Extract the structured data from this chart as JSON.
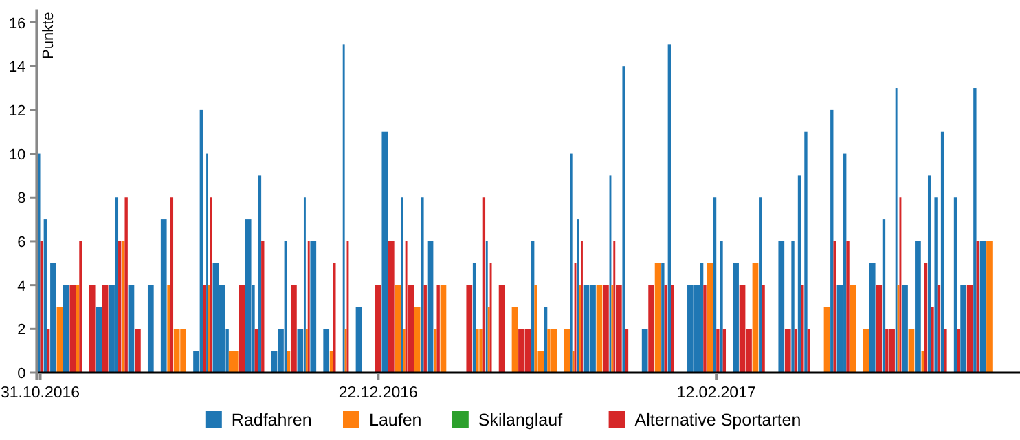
{
  "chart_data": {
    "type": "bar",
    "ylabel": "Punkte",
    "x": [
      "2016-10-31",
      "2016-11-01",
      "2016-11-02",
      "2016-11-03",
      "2016-11-04",
      "2016-11-05",
      "2016-11-06",
      "2016-11-08",
      "2016-11-09",
      "2016-11-10",
      "2016-11-11",
      "2016-11-12",
      "2016-11-13",
      "2016-11-14",
      "2016-11-15",
      "2016-11-17",
      "2016-11-19",
      "2016-11-20",
      "2016-11-21",
      "2016-11-22",
      "2016-11-24",
      "2016-11-25",
      "2016-11-26",
      "2016-11-27",
      "2016-11-28",
      "2016-11-29",
      "2016-11-30",
      "2016-12-01",
      "2016-12-02",
      "2016-12-03",
      "2016-12-04",
      "2016-12-06",
      "2016-12-07",
      "2016-12-08",
      "2016-12-09",
      "2016-12-10",
      "2016-12-11",
      "2016-12-12",
      "2016-12-14",
      "2016-12-15",
      "2016-12-17",
      "2016-12-19",
      "2016-12-22",
      "2016-12-23",
      "2016-12-24",
      "2016-12-25",
      "2016-12-26",
      "2016-12-27",
      "2016-12-28",
      "2016-12-29",
      "2016-12-30",
      "2016-12-31",
      "2017-01-01",
      "2017-01-05",
      "2017-01-06",
      "2017-01-07",
      "2017-01-08",
      "2017-01-10",
      "2017-01-12",
      "2017-01-13",
      "2017-01-14",
      "2017-01-15",
      "2017-01-16",
      "2017-01-17",
      "2017-01-18",
      "2017-01-20",
      "2017-01-21",
      "2017-01-22",
      "2017-01-23",
      "2017-01-24",
      "2017-01-25",
      "2017-01-26",
      "2017-01-27",
      "2017-01-28",
      "2017-01-29",
      "2017-02-01",
      "2017-02-02",
      "2017-02-03",
      "2017-02-04",
      "2017-02-05",
      "2017-02-08",
      "2017-02-09",
      "2017-02-10",
      "2017-02-11",
      "2017-02-12",
      "2017-02-13",
      "2017-02-15",
      "2017-02-16",
      "2017-02-17",
      "2017-02-18",
      "2017-02-19",
      "2017-02-22",
      "2017-02-23",
      "2017-02-24",
      "2017-02-25",
      "2017-02-26",
      "2017-03-01",
      "2017-03-02",
      "2017-03-03",
      "2017-03-04",
      "2017-03-05",
      "2017-03-07",
      "2017-03-08",
      "2017-03-09",
      "2017-03-10",
      "2017-03-11",
      "2017-03-12",
      "2017-03-13",
      "2017-03-14",
      "2017-03-15",
      "2017-03-16",
      "2017-03-17",
      "2017-03-18",
      "2017-03-19",
      "2017-03-21",
      "2017-03-22",
      "2017-03-23",
      "2017-03-24",
      "2017-03-25",
      "2017-03-26"
    ],
    "series": [
      {
        "name": "Radfahren",
        "color": "#1f77b4",
        "values": [
          10,
          7,
          5,
          null,
          4,
          null,
          null,
          null,
          3,
          null,
          4,
          8,
          null,
          4,
          null,
          4,
          7,
          null,
          null,
          null,
          1,
          12,
          10,
          5,
          4,
          2,
          null,
          null,
          7,
          4,
          9,
          1,
          2,
          6,
          null,
          2,
          8,
          6,
          2,
          null,
          15,
          3,
          null,
          11,
          null,
          null,
          8,
          null,
          null,
          8,
          6,
          null,
          null,
          null,
          5,
          null,
          6,
          null,
          null,
          null,
          null,
          6,
          null,
          3,
          null,
          null,
          10,
          7,
          4,
          4,
          null,
          null,
          9,
          null,
          14,
          2,
          null,
          null,
          5,
          15,
          4,
          4,
          5,
          null,
          8,
          6,
          5,
          null,
          null,
          null,
          8,
          6,
          null,
          6,
          9,
          11,
          null,
          12,
          4,
          10,
          null,
          null,
          5,
          null,
          7,
          null,
          13,
          4,
          null,
          6,
          null,
          9,
          8,
          11,
          8,
          4,
          null,
          13,
          6,
          null
        ]
      },
      {
        "name": "Laufen",
        "color": "#ff7f0e",
        "values": [
          null,
          null,
          null,
          3,
          null,
          null,
          4,
          null,
          null,
          null,
          null,
          null,
          6,
          null,
          null,
          null,
          null,
          4,
          2,
          2,
          null,
          null,
          4,
          null,
          null,
          1,
          1,
          null,
          null,
          null,
          null,
          null,
          null,
          1,
          null,
          null,
          2,
          null,
          null,
          1,
          2,
          null,
          null,
          null,
          null,
          4,
          2,
          null,
          3,
          null,
          null,
          2,
          4,
          null,
          2,
          2,
          3,
          null,
          3,
          null,
          null,
          4,
          1,
          2,
          2,
          2,
          1,
          4,
          null,
          null,
          4,
          null,
          4,
          null,
          null,
          null,
          null,
          5,
          null,
          null,
          null,
          null,
          null,
          5,
          null,
          null,
          null,
          null,
          null,
          5,
          null,
          null,
          null,
          null,
          null,
          null,
          3,
          null,
          null,
          null,
          4,
          2,
          null,
          null,
          null,
          null,
          4,
          null,
          2,
          null,
          1,
          null,
          null,
          null,
          null,
          null,
          null,
          null,
          null,
          6
        ]
      },
      {
        "name": "Skilanglauf",
        "color": "#2ca02c",
        "values": [
          null,
          null,
          null,
          null,
          null,
          null,
          null,
          null,
          null,
          null,
          null,
          null,
          null,
          null,
          null,
          null,
          null,
          null,
          null,
          null,
          null,
          null,
          null,
          null,
          null,
          null,
          null,
          null,
          null,
          null,
          null,
          null,
          null,
          null,
          null,
          null,
          null,
          null,
          null,
          null,
          null,
          null,
          null,
          null,
          null,
          null,
          null,
          null,
          null,
          null,
          null,
          null,
          null,
          null,
          null,
          null,
          null,
          null,
          null,
          null,
          null,
          null,
          null,
          null,
          null,
          null,
          null,
          null,
          null,
          null,
          null,
          null,
          null,
          null,
          null,
          null,
          null,
          null,
          null,
          null,
          null,
          null,
          null,
          null,
          null,
          null,
          null,
          null,
          null,
          null,
          null,
          null,
          null,
          null,
          null,
          null,
          null,
          null,
          null,
          null,
          null,
          null,
          null,
          null,
          null,
          null,
          null,
          null,
          null,
          null,
          null,
          null,
          null,
          null,
          null,
          null,
          null,
          null,
          null,
          null
        ]
      },
      {
        "name": "Alternative Sportarten",
        "color": "#d62728",
        "values": [
          6,
          2,
          null,
          null,
          null,
          4,
          6,
          4,
          null,
          4,
          null,
          6,
          8,
          null,
          2,
          null,
          null,
          8,
          null,
          null,
          null,
          4,
          8,
          null,
          null,
          null,
          null,
          4,
          null,
          2,
          6,
          null,
          null,
          null,
          4,
          null,
          6,
          null,
          null,
          5,
          6,
          null,
          4,
          null,
          6,
          null,
          6,
          4,
          null,
          4,
          null,
          4,
          null,
          4,
          null,
          8,
          5,
          4,
          null,
          2,
          2,
          null,
          null,
          null,
          null,
          null,
          5,
          6,
          null,
          null,
          null,
          4,
          6,
          4,
          2,
          null,
          4,
          null,
          4,
          4,
          null,
          null,
          4,
          null,
          2,
          2,
          null,
          4,
          2,
          null,
          4,
          null,
          2,
          2,
          4,
          2,
          null,
          6,
          null,
          6,
          null,
          null,
          null,
          4,
          2,
          2,
          8,
          null,
          null,
          null,
          5,
          3,
          4,
          2,
          2,
          null,
          4,
          6,
          null,
          null
        ]
      }
    ],
    "xlim": [
      "2016-10-30T11:00",
      "2017-03-30T17:00"
    ],
    "xticks": [
      {
        "value": "2016-10-31",
        "label": "31.10.2016"
      },
      {
        "value": "2016-12-22",
        "label": "22.12.2016"
      },
      {
        "value": "2017-02-12",
        "label": "12.02.2017"
      }
    ],
    "ylim": [
      0,
      16.6
    ],
    "yticks": [
      0,
      2,
      4,
      6,
      8,
      10,
      12,
      14,
      16
    ],
    "grid": false,
    "legend": "bottom"
  }
}
